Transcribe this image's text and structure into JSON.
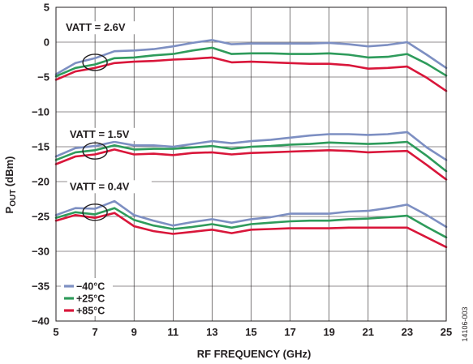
{
  "figure_id": "14106-003",
  "chart_data": {
    "type": "line",
    "xlabel": "RF FREQUENCY (GHz)",
    "ylabel": {
      "main": "P",
      "sub": "OUT",
      "rest": " (dBm)"
    },
    "xlim": [
      5,
      25
    ],
    "ylim": [
      -40,
      5
    ],
    "xticks": [
      "5",
      "7",
      "9",
      "11",
      "13",
      "15",
      "17",
      "19",
      "21",
      "23",
      "25"
    ],
    "yticks": [
      "5",
      "0",
      "−5",
      "−10",
      "−15",
      "−20",
      "−25",
      "−30",
      "−35",
      "−40"
    ],
    "grid": true,
    "legend_position": "bottom-left",
    "legend": [
      {
        "name": "−40°C",
        "color": "#7d8fc2"
      },
      {
        "name": "+25°C",
        "color": "#2e9b5b"
      },
      {
        "name": "+85°C",
        "color": "#d9163a"
      }
    ],
    "annotations": [
      {
        "label": "VATT = 2.6V",
        "text_at": [
          5.5,
          1.6
        ],
        "circle_at": [
          7,
          -2.9
        ]
      },
      {
        "label": "VATT = 1.5V",
        "text_at": [
          5.7,
          -13.7
        ],
        "circle_at": [
          7,
          -15.6
        ]
      },
      {
        "label": "VATT = 0.4V",
        "text_at": [
          5.7,
          -21.2
        ],
        "circle_at": [
          7,
          -24.4
        ]
      }
    ],
    "x": [
      5,
      6,
      7,
      8,
      9,
      10,
      11,
      12,
      13,
      14,
      15,
      16,
      17,
      18,
      19,
      20,
      21,
      22,
      23,
      24,
      25
    ],
    "series": [
      {
        "group": "VATT = 2.6V",
        "name": "−40°C",
        "color": "#7d8fc2",
        "values": [
          -4.6,
          -3.0,
          -2.3,
          -1.3,
          -1.2,
          -1.0,
          -0.6,
          -0.1,
          0.3,
          -0.3,
          -0.2,
          -0.2,
          -0.2,
          -0.2,
          -0.1,
          -0.3,
          -0.6,
          -0.4,
          0.0,
          -1.8,
          -3.7
        ]
      },
      {
        "group": "VATT = 2.6V",
        "name": "+25°C",
        "color": "#2e9b5b",
        "values": [
          -4.9,
          -3.7,
          -3.2,
          -2.3,
          -2.2,
          -1.9,
          -1.7,
          -1.2,
          -0.8,
          -1.7,
          -1.6,
          -1.6,
          -1.7,
          -1.7,
          -1.6,
          -1.8,
          -2.2,
          -2.1,
          -1.7,
          -3.1,
          -4.8
        ]
      },
      {
        "group": "VATT = 2.6V",
        "name": "+85°C",
        "color": "#d9163a",
        "values": [
          -5.4,
          -4.2,
          -3.7,
          -3.0,
          -2.8,
          -2.7,
          -2.5,
          -2.4,
          -2.2,
          -2.9,
          -2.8,
          -2.9,
          -3.0,
          -3.1,
          -3.1,
          -3.3,
          -3.8,
          -3.7,
          -3.5,
          -5.1,
          -7.0
        ]
      },
      {
        "group": "VATT = 1.5V",
        "name": "−40°C",
        "color": "#7d8fc2",
        "values": [
          -16.4,
          -15.2,
          -14.9,
          -14.3,
          -14.8,
          -14.8,
          -15.0,
          -14.6,
          -14.2,
          -14.5,
          -14.2,
          -14.0,
          -13.7,
          -13.4,
          -13.2,
          -13.2,
          -13.3,
          -13.2,
          -12.9,
          -15.1,
          -16.9
        ]
      },
      {
        "group": "VATT = 1.5V",
        "name": "+25°C",
        "color": "#2e9b5b",
        "values": [
          -16.9,
          -15.8,
          -15.5,
          -14.8,
          -15.4,
          -15.3,
          -15.3,
          -15.1,
          -14.9,
          -15.3,
          -15.0,
          -14.9,
          -14.7,
          -14.6,
          -14.4,
          -14.5,
          -14.6,
          -14.5,
          -14.3,
          -16.3,
          -18.5
        ]
      },
      {
        "group": "VATT = 1.5V",
        "name": "+85°C",
        "color": "#d9163a",
        "values": [
          -17.5,
          -16.4,
          -16.1,
          -15.4,
          -16.1,
          -16.0,
          -16.2,
          -15.9,
          -15.8,
          -16.1,
          -15.9,
          -15.8,
          -15.7,
          -15.6,
          -15.5,
          -15.6,
          -15.8,
          -15.7,
          -15.6,
          -17.6,
          -19.7
        ]
      },
      {
        "group": "VATT = 0.4V",
        "name": "−40°C",
        "color": "#7d8fc2",
        "values": [
          -24.8,
          -23.8,
          -23.9,
          -22.8,
          -24.8,
          -25.6,
          -26.3,
          -25.8,
          -25.4,
          -25.9,
          -25.4,
          -25.1,
          -24.6,
          -24.6,
          -24.6,
          -24.3,
          -24.2,
          -23.8,
          -23.3,
          -24.8,
          -26.5
        ]
      },
      {
        "group": "VATT = 0.4V",
        "name": "+25°C",
        "color": "#2e9b5b",
        "values": [
          -25.2,
          -24.4,
          -24.7,
          -23.8,
          -25.5,
          -26.3,
          -26.8,
          -26.5,
          -26.1,
          -26.6,
          -26.1,
          -25.9,
          -25.7,
          -25.6,
          -25.6,
          -25.4,
          -25.3,
          -25.1,
          -24.9,
          -26.5,
          -28.0
        ]
      },
      {
        "group": "VATT = 0.4V",
        "name": "+85°C",
        "color": "#d9163a",
        "values": [
          -25.6,
          -24.8,
          -25.2,
          -24.5,
          -26.4,
          -27.1,
          -27.5,
          -27.2,
          -26.9,
          -27.4,
          -26.9,
          -26.8,
          -26.7,
          -26.7,
          -26.7,
          -26.6,
          -26.6,
          -26.6,
          -26.6,
          -28.0,
          -29.4
        ]
      }
    ]
  }
}
